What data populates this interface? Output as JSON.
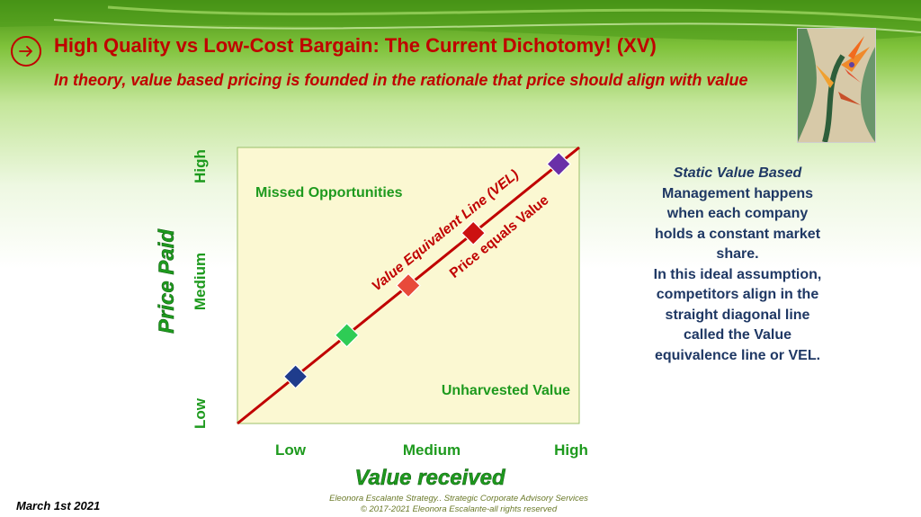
{
  "header": {
    "title": "High Quality vs Low-Cost Bargain: The Current Dichotomy! (XV)",
    "subtitle": "In theory, value based pricing is founded in the rationale that price should align with value",
    "nav_icon": "arrow-right-icon"
  },
  "image": {
    "subject": "bird-of-paradise-painting"
  },
  "chart_data": {
    "type": "scatter",
    "title": "",
    "xlabel": "Value received",
    "ylabel": "Price Paid",
    "x_ticks": [
      "Low",
      "Medium",
      "High"
    ],
    "y_ticks": [
      "Low",
      "Medium",
      "High"
    ],
    "xlim": [
      0,
      10
    ],
    "ylim": [
      0,
      10
    ],
    "grid": false,
    "background_color": "#fbf8d2",
    "line": {
      "name": "Value Equivalent Line (VEL)",
      "annotation": "Price  equals Value",
      "color": "#c00000",
      "points": [
        [
          0,
          0
        ],
        [
          10,
          10
        ]
      ]
    },
    "points": [
      {
        "x": 1.7,
        "y": 1.7,
        "color": "#1f3c8c"
      },
      {
        "x": 3.2,
        "y": 3.2,
        "color": "#2ecc55"
      },
      {
        "x": 5.0,
        "y": 5.0,
        "color": "#e84a3a"
      },
      {
        "x": 6.9,
        "y": 6.9,
        "color": "#cc1111"
      },
      {
        "x": 9.4,
        "y": 9.4,
        "color": "#6a2fa8"
      }
    ],
    "regions": [
      {
        "label": "Missed Opportunities",
        "position": "top-left"
      },
      {
        "label": "Unharvested Value",
        "position": "bottom-right"
      }
    ]
  },
  "side_text": {
    "line1": "Static Value Based",
    "line2": "Management happens",
    "line3": "when each company",
    "line4": "holds a constant market",
    "line5": "share.",
    "line6": "In this ideal assumption,",
    "line7": "competitors align in the",
    "line8": "straight diagonal line",
    "line9": "called the Value",
    "line10": "equivalence line or VEL."
  },
  "footer": {
    "date": "March 1st 2021",
    "line1": "Eleonora Escalante Strategy.. Strategic Corporate Advisory Services",
    "line2": "© 2017-2021  Eleonora Escalante-all rights reserved"
  },
  "colors": {
    "title": "#c00000",
    "axis_labels": "#1e9a1e",
    "body_text": "#1f3864"
  }
}
